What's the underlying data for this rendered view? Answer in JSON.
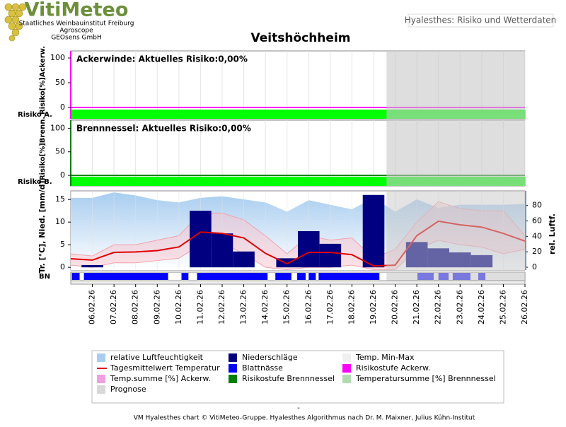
{
  "header": {
    "logo": "VitiMeteo",
    "lines": [
      "Staatliches Weinbauinstitut Freiburg",
      "Agroscope",
      "GEOsens GmbH"
    ],
    "tab": "Hyalesthes: Risiko und Wetterdaten"
  },
  "title": "Veitshöchheim",
  "prognose_start": 13.6,
  "chart_data": [
    {
      "type": "line",
      "title": "Ackerwinde: Aktuelles Risiko:0,00%",
      "ylabel": "Risiko[%]Ackerw.",
      "risk_label": "Risiko A.",
      "xlim": [
        -1,
        20
      ],
      "ylim": [
        -4.3,
        114.3
      ],
      "yticks": [
        0,
        50,
        100
      ],
      "axis_color": "#ff00ff",
      "risk_color": "#00ff00",
      "series": [
        {
          "color": "#ff00ff",
          "values": [
            0,
            0,
            0,
            0,
            0,
            0,
            0,
            0,
            0,
            0,
            0,
            0,
            0,
            0,
            0,
            0,
            0,
            0,
            0,
            0,
            0,
            0
          ]
        }
      ]
    },
    {
      "type": "line",
      "title": "Brennnessel: Aktuelles Risiko:0,00%",
      "ylabel": "Risiko[%]Brenn.",
      "risk_label": "Risiko B.",
      "xlim": [
        -1,
        20
      ],
      "ylim": [
        -2.9,
        117.1
      ],
      "yticks": [
        0,
        50,
        100
      ],
      "axis_color": "#008000",
      "risk_color": "#00ff00",
      "series": [
        {
          "color": "#008000",
          "values": [
            0,
            0,
            0,
            0,
            0,
            0,
            0,
            0,
            0,
            0,
            0,
            0,
            0,
            0,
            0,
            0,
            0,
            0,
            0,
            0,
            0,
            0
          ]
        }
      ]
    },
    {
      "type": "combo",
      "ylabel": "Tr. [°C], Nied. [mm/d]",
      "y2label": "rel. Luftf.",
      "bn_label": "BN",
      "x": [
        -1,
        0,
        1,
        2,
        3,
        4,
        5,
        6,
        7,
        8,
        9,
        10,
        11,
        12,
        13,
        14,
        15,
        16,
        17,
        18,
        19,
        20
      ],
      "xlim": [
        -1,
        20
      ],
      "xticks": [
        {
          "value": 0,
          "label": "06.02.26"
        },
        {
          "value": 1,
          "label": "07.02.26"
        },
        {
          "value": 2,
          "label": "08.02.26"
        },
        {
          "value": 3,
          "label": "09.02.26"
        },
        {
          "value": 4,
          "label": "10.02.26"
        },
        {
          "value": 5,
          "label": "11.02.26"
        },
        {
          "value": 6,
          "label": "12.02.26"
        },
        {
          "value": 7,
          "label": "13.02.26"
        },
        {
          "value": 8,
          "label": "14.02.26"
        },
        {
          "value": 9,
          "label": "15.02.26"
        },
        {
          "value": 10,
          "label": "16.02.26"
        },
        {
          "value": 11,
          "label": "17.02.26"
        },
        {
          "value": 12,
          "label": "18.02.26"
        },
        {
          "value": 13,
          "label": "19.02.26"
        },
        {
          "value": 14,
          "label": "20.02.26"
        },
        {
          "value": 15,
          "label": "21.02.26"
        },
        {
          "value": 16,
          "label": "22.02.26"
        },
        {
          "value": 17,
          "label": "23.02.26"
        },
        {
          "value": 18,
          "label": "24.02.26"
        },
        {
          "value": 19,
          "label": "25.02.26"
        },
        {
          "value": 20,
          "label": "26.02.26"
        }
      ],
      "ylim": [
        -0.6,
        16.9
      ],
      "yticks": [
        0,
        5,
        10,
        15
      ],
      "y2lim": [
        -3.7,
        99
      ],
      "y2ticks": [
        0,
        20,
        40,
        60,
        80
      ],
      "humidity": {
        "color": "#a8cdf0",
        "axis": "y2",
        "values": [
          90,
          90,
          97,
          93,
          87,
          84,
          90,
          92,
          88,
          84,
          72,
          87,
          81,
          75,
          90,
          72,
          88,
          77,
          81,
          81,
          81,
          82
        ]
      },
      "tmax": {
        "color": "#f4a0a8",
        "values": [
          3,
          2.5,
          5,
          5,
          6,
          7,
          12,
          12,
          10.5,
          7,
          3,
          7,
          6,
          6.5,
          2,
          4,
          10,
          14.5,
          13,
          12.5,
          12.5,
          7
        ]
      },
      "tmin": {
        "color": "#f4a0a8",
        "values": [
          0.5,
          0,
          1,
          1,
          1.5,
          2,
          5,
          5.5,
          3,
          0,
          -0.5,
          0,
          0,
          0.5,
          -0.5,
          -0.5,
          4,
          6,
          5,
          4.5,
          3,
          4
        ]
      },
      "precip": {
        "color": "#000080",
        "values": [
          0,
          0.5,
          0,
          0,
          0,
          0,
          12.5,
          7.5,
          3.5,
          0,
          2,
          8,
          5.2,
          0,
          16,
          0,
          5.6,
          4.2,
          3.3,
          2.7,
          0,
          0
        ]
      },
      "temp": {
        "color": "#e00000",
        "values": [
          1.9,
          1.6,
          3.3,
          3.4,
          3.7,
          4.5,
          7.8,
          7.5,
          6.5,
          3.1,
          0.8,
          3.3,
          3.3,
          2.8,
          0.3,
          0.5,
          7,
          10.2,
          9.4,
          8.9,
          7.5,
          5.8
        ]
      },
      "bn_color": "#0000ff",
      "bn": [
        [
          -0.95,
          -0.59
        ],
        [
          -0.39,
          3.5
        ],
        [
          4.12,
          4.44
        ],
        [
          4.84,
          8.1
        ],
        [
          8.46,
          9.2
        ],
        [
          9.47,
          9.86
        ],
        [
          10.0,
          10.33
        ],
        [
          10.46,
          13.27
        ],
        [
          15.03,
          15.78
        ],
        [
          16.0,
          16.47
        ],
        [
          16.66,
          17.48
        ],
        [
          17.84,
          18.17
        ]
      ]
    }
  ],
  "legend": [
    {
      "name": "relative Luftfeuchtigkeit",
      "color": "#a8cdf0",
      "kind": "box"
    },
    {
      "name": "Niederschläge",
      "color": "#000080",
      "kind": "box"
    },
    {
      "name": "Temp. Min-Max",
      "color": "#f0f0f0",
      "kind": "box"
    },
    {
      "name": "Tagesmittelwert Temperatur",
      "color": "#e00000",
      "kind": "line"
    },
    {
      "name": "Blattnässe",
      "color": "#0000ff",
      "kind": "box"
    },
    {
      "name": "Risikostufe Ackerw.",
      "color": "#ff00ff",
      "kind": "box"
    },
    {
      "name": "Temp.summe [%] Ackerw.",
      "color": "#f0a0e0",
      "kind": "box"
    },
    {
      "name": "Risikostufe Brennnessel",
      "color": "#008000",
      "kind": "box"
    },
    {
      "name": "Temperatursumme [%] Brennnessel",
      "color": "#b0dcb0",
      "kind": "box"
    },
    {
      "name": "Prognose",
      "color": "#d8d8d8",
      "kind": "box"
    }
  ],
  "footer": {
    "dash": "-",
    "text": "VM Hyalesthes chart © VitiMeteo-Gruppe. Hyalesthes Algorithmus nach Dr. M. Maixner, Julius Kühn-Institut"
  }
}
